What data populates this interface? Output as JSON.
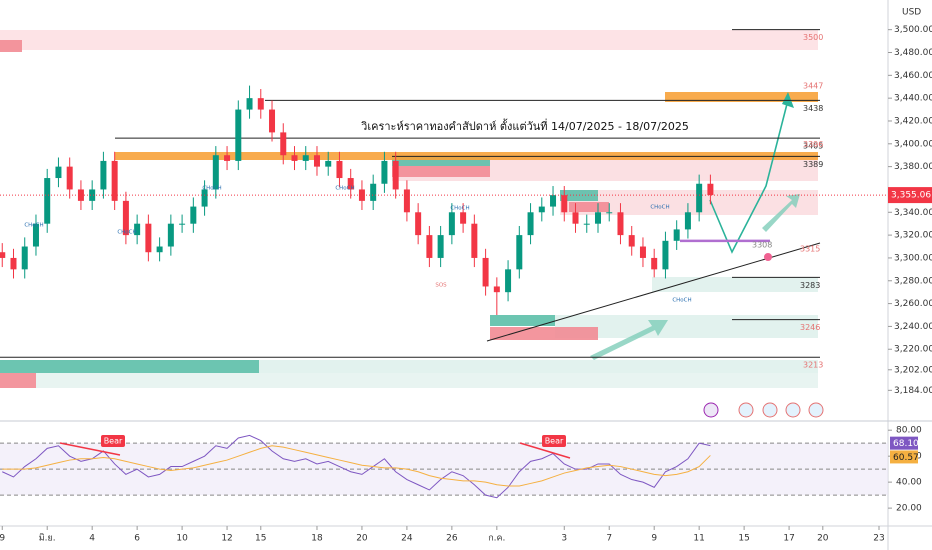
{
  "chart_data": [
    {
      "type": "candlestick",
      "currency": "USD",
      "title": "วิเคราะห์ราคาทองคำสัปดาห์ ตั้งแต่วันที่ 14/07/2025 - 18/07/2025",
      "x": [
        0,
        0.5,
        1,
        1.5,
        2,
        2.5,
        3,
        3.5,
        4,
        4.5,
        5,
        5.5,
        6,
        6.5,
        7,
        7.5,
        8,
        8.5,
        9,
        9.5,
        10,
        10.5,
        11,
        11.5,
        12,
        12.5,
        13,
        13.5,
        14,
        14.5,
        15,
        15.5,
        16,
        16.5,
        17,
        17.5,
        18,
        18.5,
        19,
        19.5,
        20,
        20.5,
        21,
        21.5,
        22,
        22.5,
        23,
        23.5,
        24,
        24.5,
        25,
        25.5,
        26,
        26.5,
        27,
        27.5,
        28,
        28.5,
        29,
        29.5,
        30,
        30.5,
        31,
        31.5
      ],
      "open": [
        3305,
        3300,
        3290,
        3310,
        3330,
        3370,
        3380,
        3360,
        3350,
        3360,
        3385,
        3350,
        3320,
        3330,
        3305,
        3310,
        3330,
        3330,
        3345,
        3360,
        3390,
        3385,
        3430,
        3440,
        3430,
        3410,
        3390,
        3385,
        3390,
        3380,
        3385,
        3370,
        3360,
        3350,
        3365,
        3385,
        3360,
        3340,
        3320,
        3300,
        3320,
        3340,
        3330,
        3300,
        3275,
        3270,
        3290,
        3320,
        3340,
        3345,
        3355,
        3340,
        3330,
        3330,
        3340,
        3340,
        3320,
        3310,
        3300,
        3290,
        3315,
        3325,
        3340,
        3365
      ],
      "high": [
        3313,
        3308,
        3318,
        3338,
        3378,
        3388,
        3388,
        3368,
        3368,
        3393,
        3393,
        3358,
        3338,
        3338,
        3318,
        3338,
        3338,
        3353,
        3368,
        3398,
        3398,
        3438,
        3451,
        3448,
        3438,
        3418,
        3398,
        3398,
        3398,
        3393,
        3393,
        3378,
        3368,
        3373,
        3393,
        3393,
        3368,
        3348,
        3328,
        3328,
        3348,
        3348,
        3338,
        3308,
        3283,
        3298,
        3328,
        3348,
        3353,
        3363,
        3363,
        3348,
        3338,
        3348,
        3348,
        3348,
        3328,
        3318,
        3308,
        3323,
        3333,
        3348,
        3373,
        3373
      ],
      "low": [
        3292,
        3282,
        3282,
        3302,
        3322,
        3362,
        3352,
        3342,
        3342,
        3352,
        3342,
        3312,
        3312,
        3297,
        3297,
        3302,
        3322,
        3322,
        3337,
        3352,
        3377,
        3377,
        3422,
        3422,
        3402,
        3382,
        3377,
        3377,
        3372,
        3372,
        3362,
        3352,
        3342,
        3342,
        3357,
        3352,
        3332,
        3312,
        3292,
        3292,
        3312,
        3322,
        3292,
        3267,
        3250,
        3262,
        3282,
        3312,
        3332,
        3337,
        3332,
        3322,
        3322,
        3322,
        3332,
        3312,
        3302,
        3292,
        3283,
        3282,
        3307,
        3317,
        3332,
        3347
      ],
      "close": [
        3300,
        3290,
        3310,
        3330,
        3370,
        3380,
        3360,
        3350,
        3360,
        3385,
        3350,
        3320,
        3330,
        3305,
        3310,
        3330,
        3330,
        3345,
        3360,
        3390,
        3385,
        3430,
        3440,
        3430,
        3410,
        3390,
        3385,
        3390,
        3380,
        3385,
        3370,
        3360,
        3350,
        3365,
        3385,
        3360,
        3340,
        3320,
        3300,
        3320,
        3340,
        3330,
        3300,
        3275,
        3270,
        3290,
        3320,
        3340,
        3345,
        3355,
        3340,
        3330,
        3330,
        3340,
        3340,
        3320,
        3310,
        3300,
        3290,
        3315,
        3325,
        3340,
        3365,
        3355.06
      ],
      "last_value_label": "3,355.06",
      "up_color": "#089981",
      "down_color": "#f23645",
      "xlim": [
        -0.1,
        39.4
      ],
      "ylim": [
        3158,
        3526
      ],
      "xticks": [
        {
          "value": 0,
          "label": "9"
        },
        {
          "value": 2,
          "label": "มิ.ย."
        },
        {
          "value": 4,
          "label": "4"
        },
        {
          "value": 6,
          "label": "6"
        },
        {
          "value": 8,
          "label": "10"
        },
        {
          "value": 10,
          "label": "12"
        },
        {
          "value": 11.5,
          "label": "15"
        },
        {
          "value": 14,
          "label": "18"
        },
        {
          "value": 16,
          "label": "20"
        },
        {
          "value": 18,
          "label": "24"
        },
        {
          "value": 20,
          "label": "26"
        },
        {
          "value": 22,
          "label": "ก.ค."
        },
        {
          "value": 25,
          "label": "3"
        },
        {
          "value": 27,
          "label": "7"
        },
        {
          "value": 29,
          "label": "9"
        },
        {
          "value": 31,
          "label": "11"
        },
        {
          "value": 33,
          "label": "15"
        },
        {
          "value": 35,
          "label": "17"
        },
        {
          "value": 36.5,
          "label": "20"
        },
        {
          "value": 39,
          "label": "23"
        }
      ],
      "yticks": [
        {
          "value": 3500,
          "label": "3,500.00"
        },
        {
          "value": 3480,
          "label": "3,480.00"
        },
        {
          "value": 3460,
          "label": "3,460.00"
        },
        {
          "value": 3440,
          "label": "3,440.00"
        },
        {
          "value": 3420,
          "label": "3,420.00"
        },
        {
          "value": 3400,
          "label": "3,400.00"
        },
        {
          "value": 3380,
          "label": "3,380.00"
        },
        {
          "value": 3340,
          "label": "3,340.00"
        },
        {
          "value": 3320,
          "label": "3,320.00"
        },
        {
          "value": 3300,
          "label": "3,300.00"
        },
        {
          "value": 3280,
          "label": "3,280.00"
        },
        {
          "value": 3260,
          "label": "3,260.00"
        },
        {
          "value": 3240,
          "label": "3,240.00"
        },
        {
          "value": 3220,
          "label": "3,220.00"
        },
        {
          "value": 3202,
          "label": "3,202.00"
        },
        {
          "value": 3184,
          "label": "3,184.00"
        }
      ],
      "levels": [
        {
          "value": 3500,
          "color": "#e57373"
        },
        {
          "value": 3447,
          "color": "#e57373"
        },
        {
          "value": 3438,
          "color": "#333333"
        },
        {
          "value": 3405,
          "color": "#333333"
        },
        {
          "value": 3396,
          "color": "#e57373"
        },
        {
          "value": 3389,
          "color": "#333333"
        },
        {
          "value": 3315,
          "color": "#e57373"
        },
        {
          "value": 3308,
          "color": "#888888"
        },
        {
          "value": 3283,
          "color": "#333333"
        },
        {
          "value": 3246,
          "color": "#e57373"
        },
        {
          "value": 3213,
          "color": "#e57373"
        }
      ],
      "annotations": [
        "CHoCH",
        "CHoCH",
        "CHoCH",
        "CHoCH",
        "CHoCH",
        "CHoCH",
        "CHoCH",
        "SOS"
      ]
    },
    {
      "type": "rsi",
      "ylim": [
        7,
        84
      ],
      "yticks": [
        {
          "value": 80,
          "label": "80.00"
        },
        {
          "value": 60,
          "label": "60.00"
        },
        {
          "value": 40,
          "label": "40.00"
        },
        {
          "value": 20,
          "label": "20.00"
        }
      ],
      "bands": [
        70,
        50,
        30
      ],
      "series": [
        {
          "color": "#7e57c2",
          "values": [
            48,
            44,
            52,
            58,
            66,
            68,
            60,
            56,
            58,
            64,
            54,
            46,
            50,
            44,
            46,
            52,
            52,
            56,
            60,
            68,
            66,
            74,
            76,
            72,
            64,
            58,
            56,
            58,
            54,
            56,
            52,
            48,
            46,
            52,
            58,
            48,
            42,
            38,
            34,
            42,
            48,
            45,
            38,
            30,
            28,
            36,
            48,
            56,
            58,
            62,
            54,
            50,
            50,
            54,
            54,
            46,
            42,
            40,
            36,
            48,
            52,
            58,
            70,
            68.1
          ],
          "last_value_label": "68.10"
        },
        {
          "color": "#f5b041",
          "values": [
            50,
            50,
            50,
            51,
            53,
            55,
            57,
            58,
            58,
            59,
            58,
            56,
            54,
            52,
            50,
            49,
            50,
            51,
            53,
            55,
            57,
            60,
            63,
            66,
            68,
            67,
            65,
            63,
            61,
            59,
            57,
            55,
            53,
            52,
            51,
            51,
            50,
            48,
            45,
            43,
            42,
            41,
            41,
            40,
            38,
            37,
            37,
            39,
            41,
            44,
            47,
            49,
            51,
            52,
            53,
            52,
            50,
            48,
            46,
            45,
            46,
            48,
            52,
            60.57
          ],
          "last_value_label": "60.57"
        }
      ],
      "annotations": [
        "Bear",
        "Bear"
      ]
    }
  ]
}
